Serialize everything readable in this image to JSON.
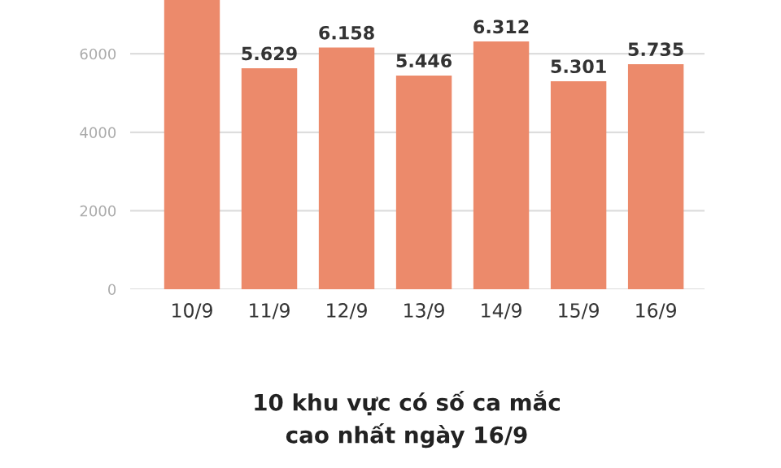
{
  "chart_data": {
    "type": "bar",
    "title": "10 khu vực có số ca mắc\ncao nhất ngày 16/9",
    "categories": [
      "10/9",
      "11/9",
      "12/9",
      "13/9",
      "14/9",
      "15/9",
      "16/9"
    ],
    "values": [
      7370,
      5629,
      6158,
      5446,
      6312,
      5301,
      5735
    ],
    "value_labels": [
      null,
      "5.629",
      "6.158",
      "5.446",
      "6.312",
      "5.301",
      "5.735"
    ],
    "color": "#ec8a6b",
    "ylim": [
      0,
      7370
    ],
    "yticks": [
      0,
      2000,
      4000,
      6000
    ],
    "grid": "y"
  }
}
